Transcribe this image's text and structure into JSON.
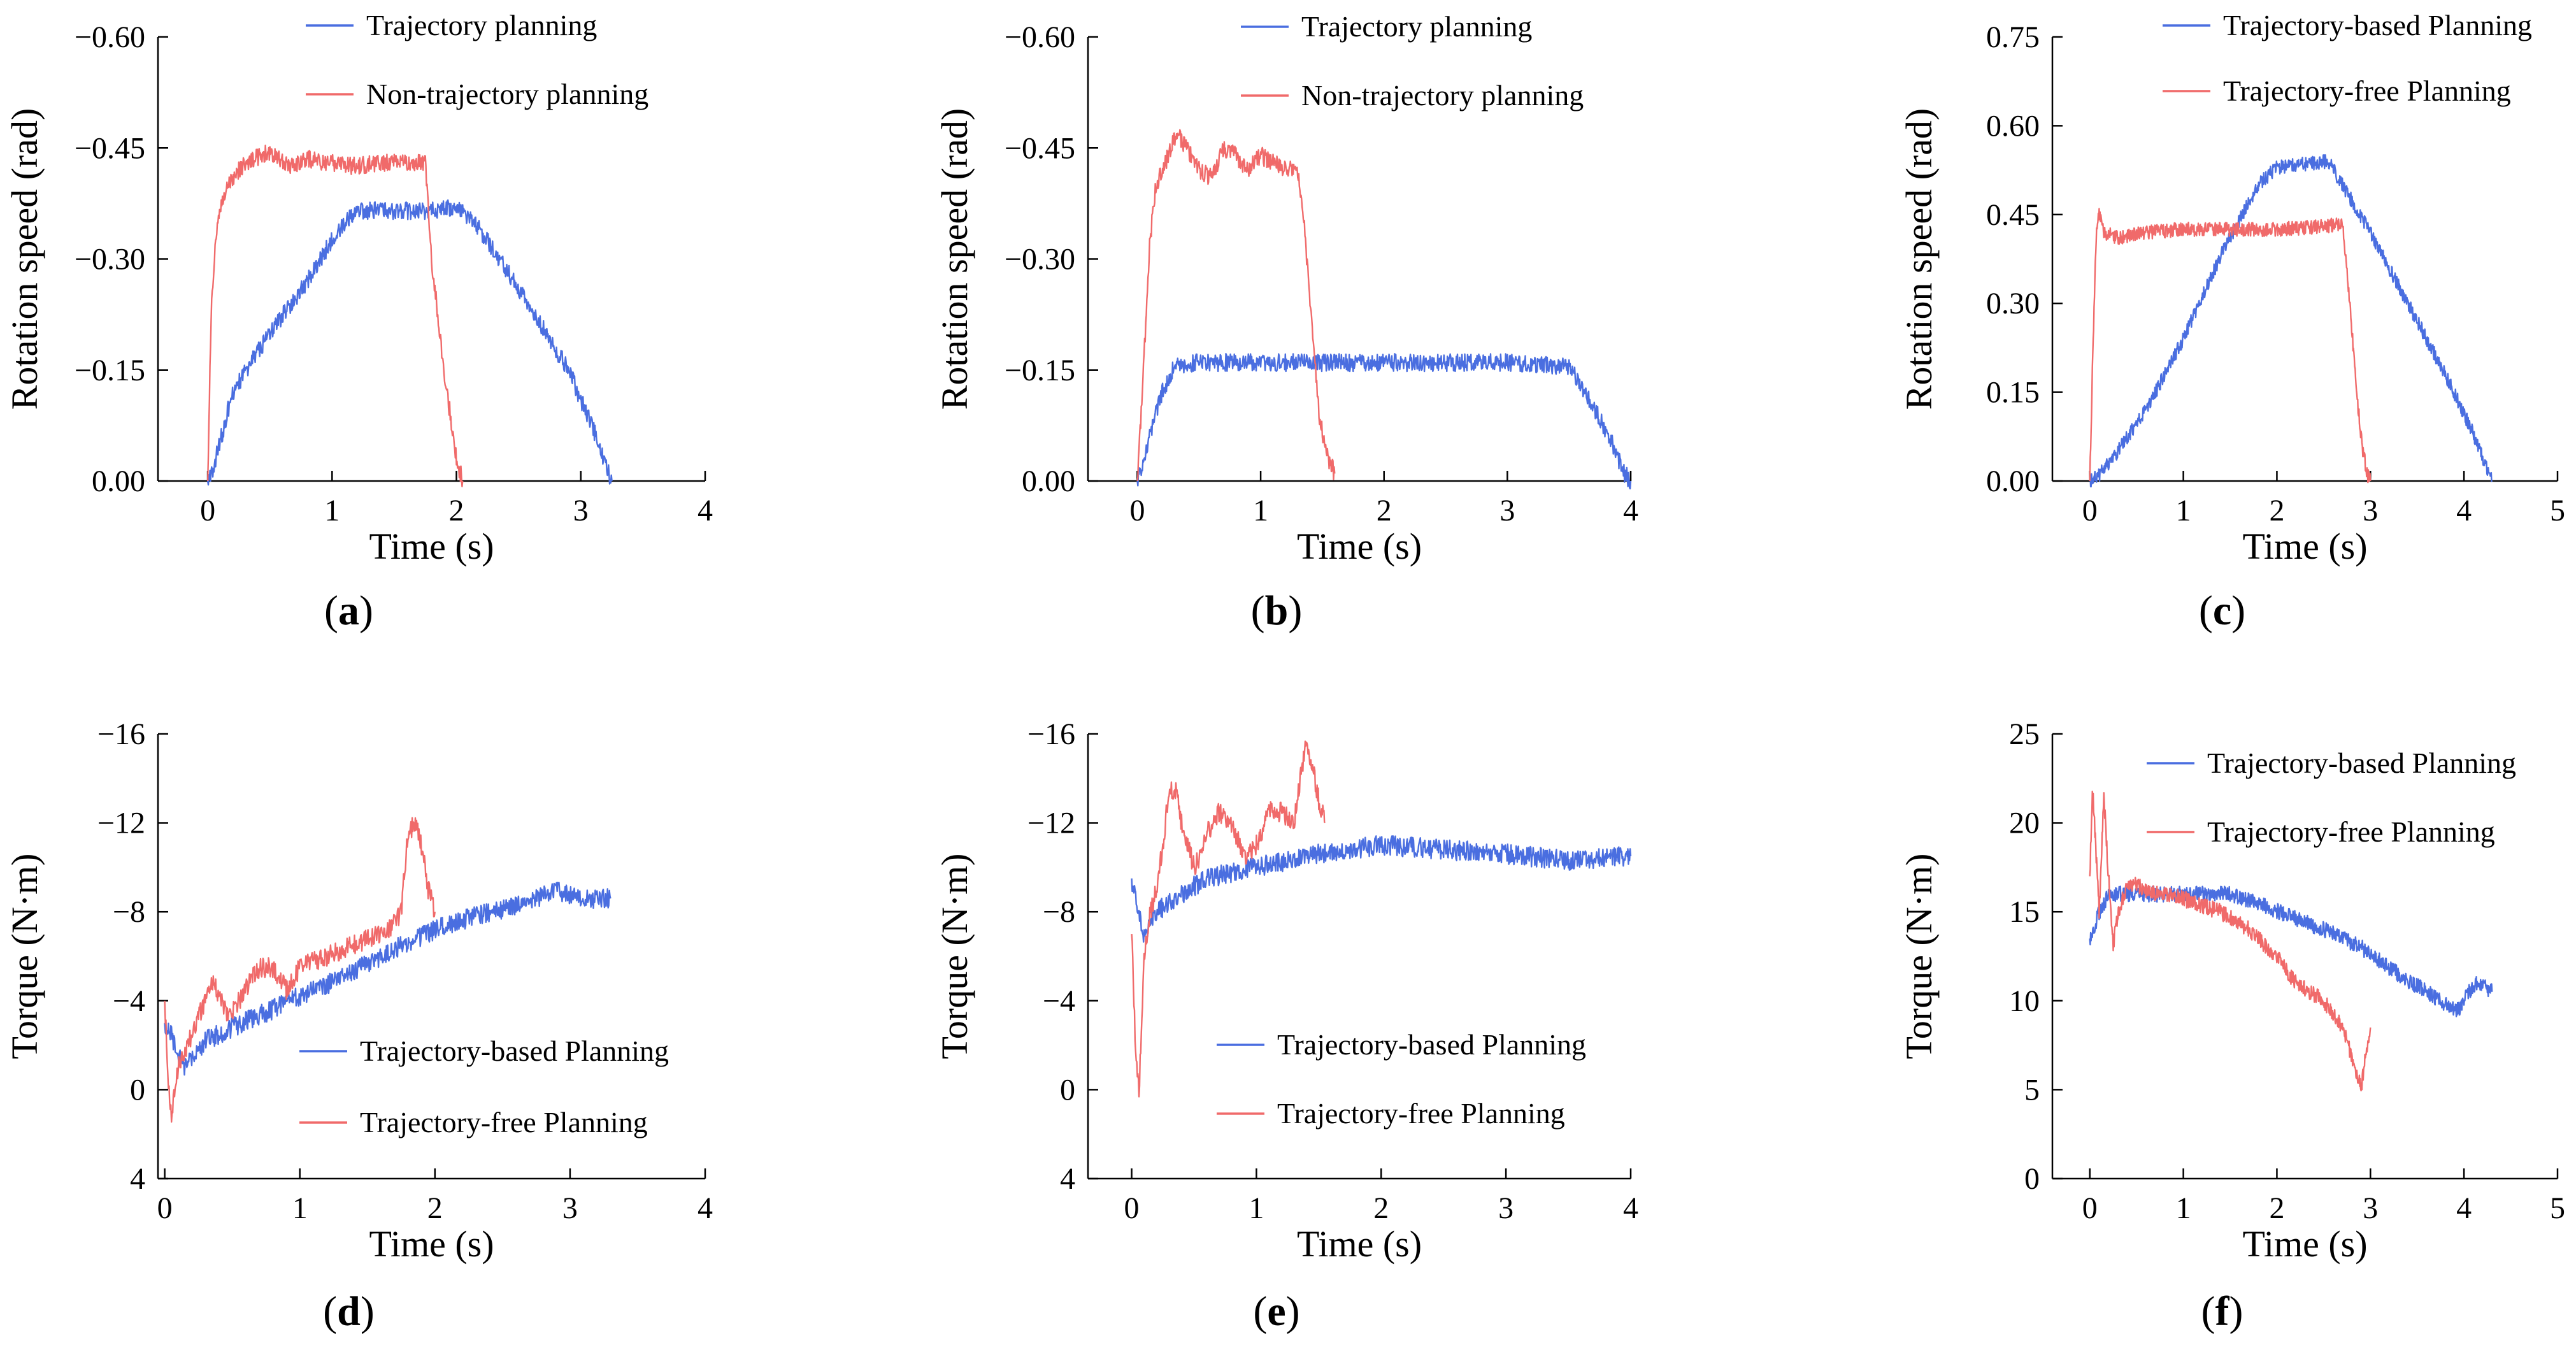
{
  "chart_data": [
    {
      "id": "a",
      "type": "line",
      "caption": {
        "open": "(",
        "letter": "a",
        "close": ")"
      },
      "xlabel": "Time (s)",
      "ylabel": "Rotation speed (rad)",
      "xlim": [
        -0.4,
        4
      ],
      "xticks": [
        0,
        1,
        2,
        3,
        4
      ],
      "xticklabels": [
        "0",
        "1",
        "2",
        "3",
        "4"
      ],
      "ylim": [
        0,
        -0.6
      ],
      "yticks": [
        0,
        -0.15,
        -0.3,
        -0.45,
        -0.6
      ],
      "yticklabels": [
        "0.00",
        "−0.15",
        "−0.30",
        "−0.45",
        "−0.60"
      ],
      "legend_position": "top-right",
      "noise": 0.012,
      "series": [
        {
          "name": "Trajectory planning",
          "color": "#4a6ee0",
          "width": 2.4,
          "x": [
            0,
            0.05,
            0.2,
            0.5,
            0.8,
            1.05,
            1.2,
            1.5,
            1.8,
            2.0,
            2.15,
            2.5,
            2.9,
            3.1,
            3.2,
            3.25
          ],
          "y": [
            0,
            -0.02,
            -0.12,
            -0.2,
            -0.27,
            -0.34,
            -0.365,
            -0.365,
            -0.365,
            -0.37,
            -0.35,
            -0.26,
            -0.15,
            -0.07,
            -0.02,
            0
          ]
        },
        {
          "name": "Non-trajectory planning",
          "color": "#f06a6a",
          "width": 2.4,
          "x": [
            0,
            0.03,
            0.08,
            0.15,
            0.3,
            0.5,
            0.65,
            0.8,
            1.0,
            1.2,
            1.4,
            1.6,
            1.75,
            1.8,
            1.9,
            2.0,
            2.05
          ],
          "y": [
            0,
            -0.25,
            -0.35,
            -0.4,
            -0.43,
            -0.445,
            -0.425,
            -0.435,
            -0.43,
            -0.425,
            -0.43,
            -0.43,
            -0.43,
            -0.3,
            -0.15,
            -0.03,
            0
          ]
        }
      ]
    },
    {
      "id": "b",
      "type": "line",
      "caption": {
        "open": "(",
        "letter": "b",
        "close": ")"
      },
      "xlabel": "Time (s)",
      "ylabel": "Rotation speed (rad)",
      "xlim": [
        -0.4,
        4
      ],
      "xticks": [
        0,
        1,
        2,
        3,
        4
      ],
      "xticklabels": [
        "0",
        "1",
        "2",
        "3",
        "4"
      ],
      "ylim": [
        0,
        -0.6
      ],
      "yticks": [
        0,
        -0.15,
        -0.3,
        -0.45,
        -0.6
      ],
      "yticklabels": [
        "0.00",
        "−0.15",
        "−0.30",
        "−0.45",
        "−0.60"
      ],
      "legend_position": "top-right",
      "noise": 0.012,
      "series": [
        {
          "name": "Trajectory planning",
          "color": "#4a6ee0",
          "width": 2.4,
          "x": [
            0,
            0.05,
            0.1,
            0.2,
            0.3,
            0.5,
            1.0,
            2.0,
            3.0,
            3.5,
            3.7,
            3.85,
            3.95,
            4.0
          ],
          "y": [
            0,
            -0.02,
            -0.06,
            -0.12,
            -0.155,
            -0.16,
            -0.16,
            -0.16,
            -0.16,
            -0.155,
            -0.1,
            -0.05,
            -0.01,
            0
          ]
        },
        {
          "name": "Non-trajectory planning",
          "color": "#f06a6a",
          "width": 2.4,
          "x": [
            0,
            0.05,
            0.1,
            0.15,
            0.25,
            0.32,
            0.4,
            0.5,
            0.6,
            0.7,
            0.8,
            0.9,
            1.0,
            1.1,
            1.2,
            1.3,
            1.35,
            1.42,
            1.48,
            1.55,
            1.6
          ],
          "y": [
            0,
            -0.15,
            -0.32,
            -0.4,
            -0.44,
            -0.47,
            -0.45,
            -0.42,
            -0.41,
            -0.45,
            -0.44,
            -0.42,
            -0.44,
            -0.43,
            -0.42,
            -0.42,
            -0.35,
            -0.2,
            -0.08,
            -0.03,
            -0.01
          ]
        }
      ]
    },
    {
      "id": "c",
      "type": "line",
      "caption": {
        "open": "(",
        "letter": "c",
        "close": ")"
      },
      "xlabel": "Time (s)",
      "ylabel": "Rotation speed (rad)",
      "xlim": [
        -0.4,
        5
      ],
      "xticks": [
        0,
        1,
        2,
        3,
        4,
        5
      ],
      "xticklabels": [
        "0",
        "1",
        "2",
        "3",
        "4",
        "5"
      ],
      "ylim": [
        0,
        0.75
      ],
      "yticks": [
        0,
        0.15,
        0.3,
        0.45,
        0.6,
        0.75
      ],
      "yticklabels": [
        "0.00",
        "0.15",
        "0.30",
        "0.45",
        "0.60",
        "0.75"
      ],
      "legend_position": "top-right",
      "noise": 0.012,
      "series": [
        {
          "name": "Trajectory-based Planning",
          "color": "#4a6ee0",
          "width": 2.4,
          "x": [
            0,
            0.1,
            0.3,
            0.6,
            1.0,
            1.4,
            1.8,
            2.0,
            2.3,
            2.55,
            2.7,
            3.0,
            3.4,
            3.8,
            4.1,
            4.25,
            4.3
          ],
          "y": [
            0,
            0.01,
            0.05,
            0.12,
            0.24,
            0.38,
            0.5,
            0.53,
            0.535,
            0.54,
            0.5,
            0.42,
            0.3,
            0.18,
            0.08,
            0.02,
            0
          ]
        },
        {
          "name": "Trajectory-free Planning",
          "color": "#f06a6a",
          "width": 2.4,
          "x": [
            0,
            0.03,
            0.07,
            0.1,
            0.15,
            0.3,
            0.6,
            1.0,
            1.5,
            2.0,
            2.5,
            2.7,
            2.78,
            2.85,
            2.92,
            2.97,
            3.0
          ],
          "y": [
            0,
            0.2,
            0.42,
            0.45,
            0.42,
            0.41,
            0.42,
            0.425,
            0.425,
            0.425,
            0.43,
            0.435,
            0.3,
            0.15,
            0.05,
            0.01,
            0
          ]
        }
      ]
    },
    {
      "id": "d",
      "type": "line",
      "caption": {
        "open": "(",
        "letter": "d",
        "close": ")"
      },
      "xlabel": "Time (s)",
      "ylabel": "Torque (N·m)",
      "xlim": [
        -0.05,
        4
      ],
      "xticks": [
        0,
        1,
        2,
        3,
        4
      ],
      "xticklabels": [
        "0",
        "1",
        "2",
        "3",
        "4"
      ],
      "ylim": [
        4,
        -16
      ],
      "yticks": [
        4,
        0,
        -4,
        -8,
        -12,
        -16
      ],
      "yticklabels": [
        "4",
        "0",
        "−4",
        "−8",
        "−12",
        "−16"
      ],
      "legend_position": "bottom-right",
      "noise": 0.45,
      "series": [
        {
          "name": "Trajectory-based Planning",
          "color": "#4a6ee0",
          "width": 2.4,
          "x": [
            0,
            0.05,
            0.1,
            0.15,
            0.2,
            0.3,
            0.5,
            0.8,
            1.0,
            1.3,
            1.6,
            2.0,
            2.3,
            2.6,
            2.9,
            3.1,
            3.3
          ],
          "y": [
            -3,
            -2.5,
            -1.5,
            -1,
            -1.5,
            -2.2,
            -2.8,
            -3.6,
            -4.2,
            -5,
            -6,
            -7.2,
            -7.8,
            -8.3,
            -8.9,
            -8.6,
            -8.6
          ]
        },
        {
          "name": "Trajectory-free Planning",
          "color": "#f06a6a",
          "width": 2.4,
          "x": [
            0,
            0.03,
            0.05,
            0.1,
            0.2,
            0.3,
            0.35,
            0.45,
            0.5,
            0.6,
            0.7,
            0.8,
            0.9,
            1.0,
            1.2,
            1.4,
            1.6,
            1.7,
            1.75,
            1.8,
            1.85,
            1.9,
            1.95,
            2.0
          ],
          "y": [
            -4,
            0,
            1,
            -1,
            -2.5,
            -4,
            -5,
            -3.5,
            -3.5,
            -4.5,
            -5.5,
            -5.5,
            -4.5,
            -5.5,
            -6,
            -6.5,
            -7,
            -7.5,
            -8,
            -11.5,
            -12,
            -11,
            -9,
            -8
          ]
        }
      ]
    },
    {
      "id": "e",
      "type": "line",
      "caption": {
        "open": "(",
        "letter": "e",
        "close": ")"
      },
      "xlabel": "Time (s)",
      "ylabel": "Torque (N·m)",
      "xlim": [
        -0.35,
        4
      ],
      "xticks": [
        0,
        1,
        2,
        3,
        4
      ],
      "xticklabels": [
        "0",
        "1",
        "2",
        "3",
        "4"
      ],
      "ylim": [
        4,
        -16
      ],
      "yticks": [
        4,
        0,
        -4,
        -8,
        -12,
        -16
      ],
      "yticklabels": [
        "4",
        "0",
        "−4",
        "−8",
        "−12",
        "−16"
      ],
      "legend_position": "bottom-right",
      "noise": 0.45,
      "series": [
        {
          "name": "Trajectory-based Planning",
          "color": "#4a6ee0",
          "width": 2.4,
          "x": [
            0,
            0.05,
            0.1,
            0.2,
            0.4,
            0.6,
            1.0,
            1.5,
            2.0,
            2.5,
            3.0,
            3.5,
            4.0
          ],
          "y": [
            -9.5,
            -8,
            -7,
            -8,
            -8.8,
            -9.5,
            -10,
            -10.6,
            -11,
            -10.8,
            -10.6,
            -10.3,
            -10.5
          ]
        },
        {
          "name": "Trajectory-free Planning",
          "color": "#f06a6a",
          "width": 2.4,
          "x": [
            0,
            0.03,
            0.06,
            0.1,
            0.15,
            0.2,
            0.25,
            0.3,
            0.35,
            0.4,
            0.5,
            0.55,
            0.6,
            0.7,
            0.8,
            0.9,
            1.0,
            1.1,
            1.2,
            1.3,
            1.35,
            1.4,
            1.45,
            1.5,
            1.55
          ],
          "y": [
            -7,
            -2,
            0,
            -6,
            -8,
            -9,
            -11,
            -13.5,
            -13.5,
            -12,
            -10,
            -10.5,
            -11.5,
            -12.5,
            -12,
            -10.5,
            -11,
            -12.5,
            -12.5,
            -12,
            -14,
            -15.5,
            -14.5,
            -13,
            -12
          ]
        }
      ]
    },
    {
      "id": "f",
      "type": "line",
      "caption": {
        "open": "(",
        "letter": "f",
        "close": ")"
      },
      "xlabel": "Time (s)",
      "ylabel": "Torque (N·m)",
      "xlim": [
        -0.4,
        5
      ],
      "xticks": [
        0,
        1,
        2,
        3,
        4,
        5
      ],
      "xticklabels": [
        "0",
        "1",
        "2",
        "3",
        "4",
        "5"
      ],
      "ylim": [
        0,
        25
      ],
      "yticks": [
        0,
        5,
        10,
        15,
        20,
        25
      ],
      "yticklabels": [
        "0",
        "5",
        "10",
        "15",
        "20",
        "25"
      ],
      "legend_position": "top-right",
      "noise": 0.45,
      "series": [
        {
          "name": "Trajectory-based Planning",
          "color": "#4a6ee0",
          "width": 2.4,
          "x": [
            0,
            0.1,
            0.2,
            0.4,
            0.8,
            1.0,
            1.5,
            1.8,
            2.1,
            2.5,
            2.9,
            3.3,
            3.6,
            3.8,
            3.95,
            4.05,
            4.15,
            4.3
          ],
          "y": [
            13.5,
            15,
            16,
            16,
            16,
            16,
            16,
            15.5,
            14.8,
            14,
            13,
            11.5,
            10.5,
            9.8,
            9.5,
            10.5,
            11,
            10.5
          ]
        },
        {
          "name": "Trajectory-free Planning",
          "color": "#f06a6a",
          "width": 2.4,
          "x": [
            0,
            0.03,
            0.06,
            0.1,
            0.15,
            0.2,
            0.25,
            0.3,
            0.4,
            0.5,
            0.7,
            0.9,
            1.1,
            1.4,
            1.7,
            2.0,
            2.2,
            2.5,
            2.7,
            2.85,
            2.9,
            2.95,
            3.0
          ],
          "y": [
            17,
            22,
            19,
            15,
            21.5,
            17,
            13,
            15,
            16.5,
            16.5,
            16,
            16,
            15.5,
            15,
            14,
            12.5,
            11,
            10,
            8.5,
            6,
            5,
            7,
            8.5
          ]
        }
      ]
    }
  ]
}
